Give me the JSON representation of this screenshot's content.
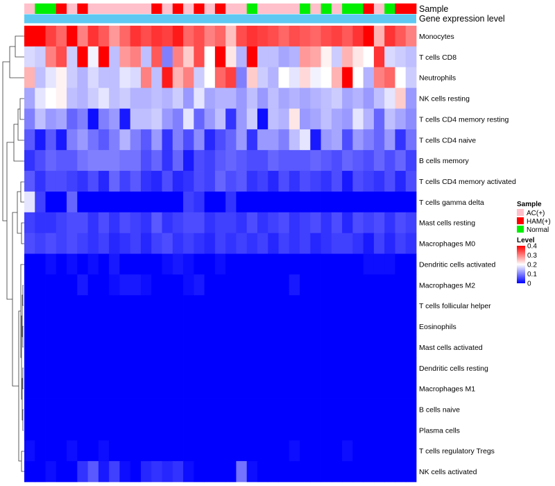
{
  "chart_data": {
    "type": "heatmap",
    "title": "",
    "annotations": [
      {
        "name": "Sample",
        "label": "Sample"
      },
      {
        "name": "Gene expression level",
        "label": "Gene expression level",
        "color": "#5ec8f2"
      }
    ],
    "samples": [
      "AC",
      "Normal",
      "Normal",
      "HAM",
      "AC",
      "HAM",
      "AC",
      "AC",
      "AC",
      "AC",
      "AC",
      "AC",
      "HAM",
      "AC",
      "HAM",
      "AC",
      "HAM",
      "AC",
      "HAM",
      "AC",
      "AC",
      "Normal",
      "AC",
      "AC",
      "AC",
      "AC",
      "Normal",
      "AC",
      "Normal",
      "AC",
      "Normal",
      "Normal",
      "HAM",
      "AC",
      "Normal",
      "HAM",
      "HAM"
    ],
    "rows": [
      "Monocytes",
      "T cells CD8",
      "Neutrophils",
      "NK cells resting",
      "T cells CD4 memory resting",
      "T cells CD4 naive",
      "B cells memory",
      "T cells CD4 memory activated",
      "T cells gamma delta",
      "Mast cells resting",
      "Macrophages M0",
      "Dendritic cells activated",
      "Macrophages M2",
      "T cells follicular helper",
      "Eosinophils",
      "Mast cells activated",
      "Dendritic cells resting",
      "Macrophages M1",
      "B cells naive",
      "Plasma cells",
      "T cells regulatory  Tregs",
      "NK cells activated"
    ],
    "color_scale": {
      "min": 0,
      "mid": 0.2,
      "max": 0.4,
      "low": "#0000ff",
      "mid_color": "#ffffff",
      "high": "#ff0000"
    },
    "values": [
      [
        0.4,
        0.4,
        0.35,
        0.32,
        0.4,
        0.3,
        0.36,
        0.33,
        0.28,
        0.32,
        0.36,
        0.34,
        0.36,
        0.35,
        0.38,
        0.32,
        0.34,
        0.3,
        0.32,
        0.25,
        0.34,
        0.36,
        0.35,
        0.34,
        0.32,
        0.34,
        0.33,
        0.32,
        0.34,
        0.35,
        0.33,
        0.36,
        0.4,
        0.26,
        0.36,
        0.33,
        0.3
      ],
      [
        0.17,
        0.16,
        0.3,
        0.34,
        0.16,
        0.4,
        0.19,
        0.4,
        0.15,
        0.28,
        0.3,
        0.15,
        0.33,
        0.1,
        0.3,
        0.24,
        0.34,
        0.2,
        0.4,
        0.22,
        0.14,
        0.4,
        0.15,
        0.15,
        0.13,
        0.14,
        0.28,
        0.27,
        0.21,
        0.16,
        0.26,
        0.22,
        0.2,
        0.36,
        0.17,
        0.16,
        0.15
      ],
      [
        0.26,
        0.15,
        0.18,
        0.21,
        0.16,
        0.14,
        0.17,
        0.15,
        0.15,
        0.18,
        0.17,
        0.3,
        0.15,
        0.38,
        0.26,
        0.3,
        0.16,
        0.2,
        0.32,
        0.35,
        0.1,
        0.24,
        0.16,
        0.14,
        0.2,
        0.18,
        0.23,
        0.19,
        0.2,
        0.26,
        0.4,
        0.2,
        0.14,
        0.3,
        0.32,
        0.2,
        0.16
      ],
      [
        0.13,
        0.18,
        0.2,
        0.21,
        0.15,
        0.14,
        0.16,
        0.18,
        0.15,
        0.16,
        0.14,
        0.14,
        0.15,
        0.14,
        0.16,
        0.12,
        0.18,
        0.13,
        0.14,
        0.14,
        0.12,
        0.15,
        0.12,
        0.15,
        0.13,
        0.14,
        0.13,
        0.14,
        0.15,
        0.16,
        0.13,
        0.14,
        0.12,
        0.15,
        0.18,
        0.24,
        0.12
      ],
      [
        0.1,
        0.15,
        0.12,
        0.13,
        0.08,
        0.1,
        0.01,
        0.1,
        0.12,
        0.02,
        0.15,
        0.15,
        0.16,
        0.12,
        0.1,
        0.18,
        0.08,
        0.12,
        0.15,
        0.04,
        0.12,
        0.16,
        0.01,
        0.15,
        0.14,
        0.22,
        0.12,
        0.13,
        0.15,
        0.13,
        0.12,
        0.18,
        0.14,
        0.08,
        0.15,
        0.13,
        0.11
      ],
      [
        0.07,
        0.02,
        0.07,
        0.02,
        0.1,
        0.12,
        0.09,
        0.07,
        0.1,
        0.14,
        0.1,
        0.07,
        0.12,
        0.04,
        0.1,
        0.06,
        0.11,
        0.03,
        0.06,
        0.08,
        0.12,
        0.04,
        0.12,
        0.12,
        0.1,
        0.15,
        0.18,
        0.02,
        0.12,
        0.13,
        0.06,
        0.12,
        0.1,
        0.08,
        0.12,
        0.04,
        0.09
      ],
      [
        0.04,
        0.06,
        0.08,
        0.07,
        0.07,
        0.09,
        0.1,
        0.1,
        0.1,
        0.09,
        0.09,
        0.06,
        0.08,
        0.04,
        0.08,
        0.02,
        0.06,
        0.05,
        0.07,
        0.08,
        0.07,
        0.06,
        0.06,
        0.08,
        0.07,
        0.07,
        0.07,
        0.08,
        0.07,
        0.06,
        0.08,
        0.07,
        0.06,
        0.08,
        0.06,
        0.08,
        0.05
      ],
      [
        0.07,
        0.04,
        0.06,
        0.06,
        0.05,
        0.04,
        0.06,
        0.03,
        0.08,
        0.05,
        0.07,
        0.04,
        0.03,
        0.06,
        0.03,
        0.04,
        0.06,
        0.05,
        0.08,
        0.06,
        0.07,
        0.04,
        0.05,
        0.03,
        0.06,
        0.04,
        0.06,
        0.05,
        0.04,
        0.06,
        0.02,
        0.06,
        0.05,
        0.04,
        0.06,
        0.03,
        0.06
      ],
      [
        0.18,
        0.05,
        0.0,
        0.0,
        0.08,
        0.0,
        0.0,
        0.0,
        0.0,
        0.0,
        0.0,
        0.0,
        0.0,
        0.0,
        0.0,
        0.05,
        0.04,
        0.0,
        0.0,
        0.04,
        0.0,
        0.0,
        0.0,
        0.0,
        0.0,
        0.0,
        0.0,
        0.0,
        0.0,
        0.0,
        0.0,
        0.0,
        0.0,
        0.0,
        0.0,
        0.0,
        0.0
      ],
      [
        0.05,
        0.04,
        0.04,
        0.05,
        0.06,
        0.06,
        0.04,
        0.06,
        0.04,
        0.06,
        0.05,
        0.04,
        0.07,
        0.04,
        0.05,
        0.06,
        0.06,
        0.04,
        0.05,
        0.05,
        0.04,
        0.06,
        0.04,
        0.05,
        0.06,
        0.04,
        0.05,
        0.06,
        0.04,
        0.06,
        0.03,
        0.06,
        0.05,
        0.06,
        0.04,
        0.06,
        0.05
      ],
      [
        0.06,
        0.05,
        0.06,
        0.05,
        0.06,
        0.05,
        0.04,
        0.05,
        0.03,
        0.04,
        0.05,
        0.03,
        0.05,
        0.06,
        0.04,
        0.05,
        0.04,
        0.03,
        0.05,
        0.04,
        0.05,
        0.04,
        0.05,
        0.03,
        0.05,
        0.04,
        0.05,
        0.03,
        0.04,
        0.05,
        0.05,
        0.04,
        0.02,
        0.05,
        0.03,
        0.05,
        0.04
      ],
      [
        0.0,
        0.0,
        0.01,
        0.0,
        0.01,
        0.0,
        0.01,
        0.0,
        0.02,
        0.0,
        0.0,
        0.0,
        0.0,
        0.01,
        0.02,
        0.01,
        0.0,
        0.0,
        0.01,
        0.0,
        0.0,
        0.0,
        0.0,
        0.0,
        0.0,
        0.0,
        0.0,
        0.0,
        0.0,
        0.0,
        0.0,
        0.0,
        0.01,
        0.01,
        0.01,
        0.0,
        0.0
      ],
      [
        0.0,
        0.0,
        0.0,
        0.0,
        0.0,
        0.02,
        0.0,
        0.0,
        0.01,
        0.02,
        0.02,
        0.01,
        0.0,
        0.0,
        0.0,
        0.01,
        0.02,
        0.0,
        0.0,
        0.0,
        0.0,
        0.0,
        0.0,
        0.0,
        0.0,
        0.02,
        0.0,
        0.0,
        0.0,
        0.0,
        0.0,
        0.0,
        0.0,
        0.0,
        0.0,
        0.0,
        0.0
      ],
      [
        0.0,
        0.0,
        0.0,
        0.0,
        0.0,
        0.0,
        0.0,
        0.0,
        0.0,
        0.0,
        0.0,
        0.0,
        0.0,
        0.0,
        0.0,
        0.0,
        0.0,
        0.0,
        0.0,
        0.0,
        0.0,
        0.0,
        0.0,
        0.0,
        0.0,
        0.0,
        0.0,
        0.0,
        0.0,
        0.0,
        0.0,
        0.0,
        0.0,
        0.0,
        0.0,
        0.0,
        0.0
      ],
      [
        0.0,
        0.0,
        0.0,
        0.0,
        0.0,
        0.0,
        0.0,
        0.0,
        0.0,
        0.0,
        0.0,
        0.0,
        0.0,
        0.0,
        0.0,
        0.0,
        0.0,
        0.0,
        0.0,
        0.0,
        0.0,
        0.0,
        0.0,
        0.0,
        0.0,
        0.0,
        0.0,
        0.0,
        0.0,
        0.0,
        0.0,
        0.0,
        0.0,
        0.0,
        0.0,
        0.0,
        0.0
      ],
      [
        0.0,
        0.0,
        0.0,
        0.0,
        0.0,
        0.0,
        0.0,
        0.0,
        0.0,
        0.0,
        0.0,
        0.0,
        0.0,
        0.0,
        0.0,
        0.0,
        0.0,
        0.0,
        0.0,
        0.0,
        0.0,
        0.0,
        0.0,
        0.0,
        0.0,
        0.0,
        0.0,
        0.0,
        0.0,
        0.0,
        0.0,
        0.0,
        0.0,
        0.0,
        0.0,
        0.0,
        0.0
      ],
      [
        0.0,
        0.0,
        0.0,
        0.0,
        0.0,
        0.0,
        0.0,
        0.0,
        0.0,
        0.0,
        0.0,
        0.0,
        0.0,
        0.0,
        0.0,
        0.0,
        0.0,
        0.0,
        0.0,
        0.0,
        0.0,
        0.0,
        0.0,
        0.0,
        0.0,
        0.0,
        0.0,
        0.0,
        0.0,
        0.0,
        0.0,
        0.0,
        0.0,
        0.0,
        0.0,
        0.0,
        0.0
      ],
      [
        0.0,
        0.0,
        0.0,
        0.0,
        0.0,
        0.0,
        0.0,
        0.0,
        0.0,
        0.0,
        0.0,
        0.0,
        0.0,
        0.0,
        0.0,
        0.0,
        0.0,
        0.0,
        0.0,
        0.0,
        0.0,
        0.0,
        0.0,
        0.0,
        0.0,
        0.0,
        0.0,
        0.0,
        0.0,
        0.0,
        0.0,
        0.0,
        0.0,
        0.0,
        0.0,
        0.0,
        0.0
      ],
      [
        0.0,
        0.0,
        0.0,
        0.0,
        0.0,
        0.0,
        0.0,
        0.0,
        0.0,
        0.0,
        0.0,
        0.0,
        0.0,
        0.0,
        0.0,
        0.0,
        0.0,
        0.0,
        0.0,
        0.0,
        0.0,
        0.0,
        0.0,
        0.0,
        0.0,
        0.0,
        0.0,
        0.0,
        0.0,
        0.0,
        0.0,
        0.0,
        0.0,
        0.0,
        0.0,
        0.0,
        0.0
      ],
      [
        0.0,
        0.0,
        0.0,
        0.0,
        0.0,
        0.0,
        0.0,
        0.0,
        0.0,
        0.0,
        0.0,
        0.0,
        0.0,
        0.0,
        0.0,
        0.0,
        0.0,
        0.0,
        0.0,
        0.0,
        0.0,
        0.0,
        0.0,
        0.0,
        0.0,
        0.0,
        0.0,
        0.0,
        0.0,
        0.0,
        0.0,
        0.0,
        0.0,
        0.0,
        0.0,
        0.0,
        0.0
      ],
      [
        0.01,
        0.0,
        0.0,
        0.0,
        0.01,
        0.0,
        0.0,
        0.01,
        0.0,
        0.0,
        0.0,
        0.0,
        0.0,
        0.0,
        0.0,
        0.0,
        0.0,
        0.0,
        0.0,
        0.0,
        0.0,
        0.0,
        0.0,
        0.0,
        0.0,
        0.01,
        0.0,
        0.0,
        0.0,
        0.0,
        0.01,
        0.0,
        0.0,
        0.0,
        0.0,
        0.0,
        0.0
      ],
      [
        0.0,
        0.0,
        0.01,
        0.0,
        0.0,
        0.04,
        0.07,
        0.02,
        0.05,
        0.01,
        0.0,
        0.03,
        0.04,
        0.03,
        0.04,
        0.01,
        0.0,
        0.0,
        0.0,
        0.0,
        0.09,
        0.01,
        0.0,
        0.0,
        0.0,
        0.0,
        0.0,
        0.0,
        0.0,
        0.0,
        0.0,
        0.0,
        0.0,
        0.0,
        0.0,
        0.0,
        0.0
      ]
    ],
    "legend": {
      "sample": {
        "title": "Sample",
        "items": [
          {
            "key": "AC",
            "label": "AC(+)",
            "color": "#ffc0cb"
          },
          {
            "key": "HAM",
            "label": "HAM(+)",
            "color": "#ff0000"
          },
          {
            "key": "Normal",
            "label": "Normal",
            "color": "#00ee00"
          }
        ]
      },
      "level": {
        "title": "Level",
        "ticks": [
          0.4,
          0.3,
          0.2,
          0.1,
          0
        ]
      }
    }
  }
}
